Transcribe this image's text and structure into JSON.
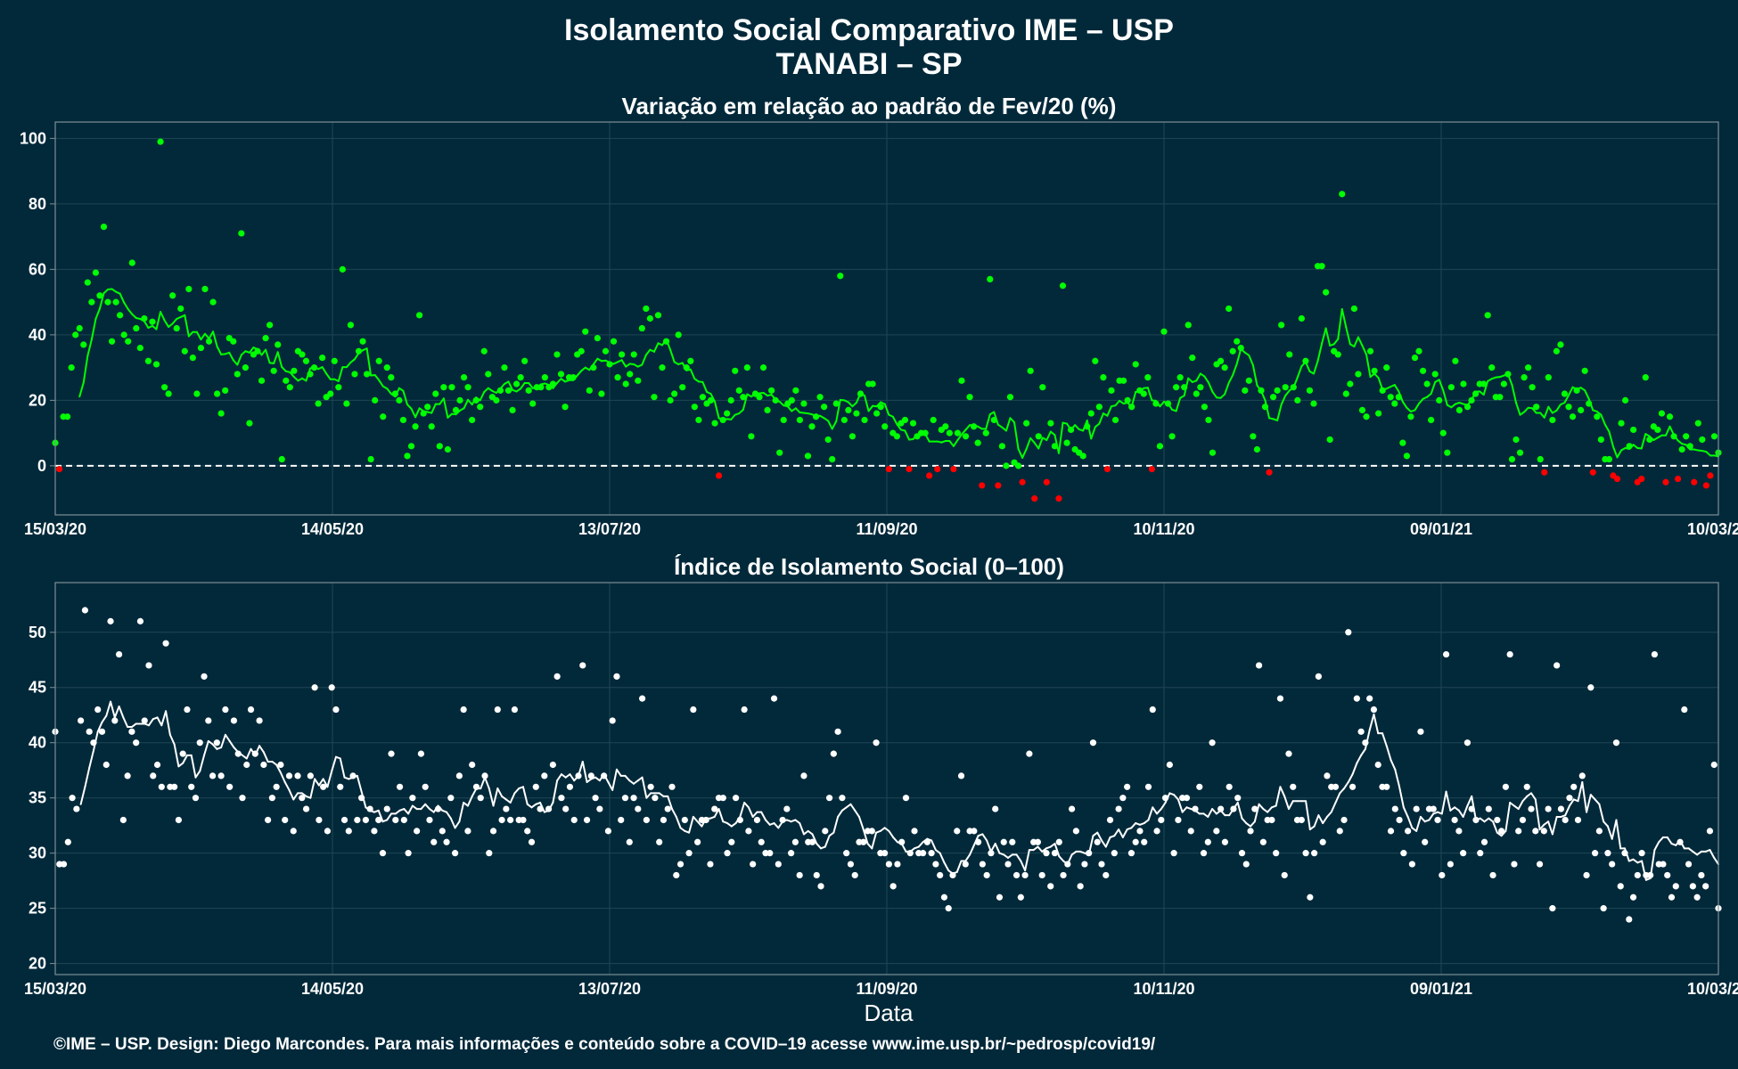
{
  "header": {
    "title": "Isolamento Social Comparativo IME – USP",
    "subtitle": "TANABI – SP"
  },
  "footer": {
    "xlabel": "Data",
    "caption": "©IME – USP. Design: Diego Marcondes. Para mais informações e conteúdo sobre a COVID–19 acesse www.ime.usp.br/~pedrosp/covid19/"
  },
  "colors": {
    "background": "#02293a",
    "positive_points": "#00ff00",
    "negative_points": "#ff0000",
    "index_points": "#ffffff",
    "grid": "#1f4654",
    "frame": "#7f8f96"
  },
  "chart_data": [
    {
      "type": "scatter",
      "title": "Variação em relação ao padrão de Fev/20 (%)",
      "x_ticks": [
        "15/03/20",
        "14/05/20",
        "13/07/20",
        "11/09/20",
        "10/11/20",
        "09/01/21",
        "10/03/21"
      ],
      "x_range": [
        "15/03/20",
        "10/03/21"
      ],
      "ylim": [
        -15,
        105
      ],
      "y_ticks": [
        0,
        20,
        40,
        60,
        80,
        100
      ],
      "reference_line": 0,
      "series": [
        {
          "role": "daily",
          "values": [
            7,
            -1,
            15,
            15,
            30,
            40,
            42,
            37,
            56,
            50,
            59,
            52,
            73,
            50,
            38,
            50,
            46,
            40,
            38,
            62,
            42,
            36,
            45,
            32,
            44,
            31,
            99,
            24,
            22,
            52,
            42,
            48,
            35,
            54,
            33,
            22,
            36,
            54,
            38,
            50,
            22,
            16,
            23,
            39,
            38,
            28,
            71,
            30,
            13,
            34,
            35,
            26,
            39,
            43,
            29,
            37,
            2,
            26,
            24,
            29,
            35,
            34,
            32,
            28,
            30,
            19,
            33,
            21,
            22,
            32,
            24,
            60,
            19,
            43,
            28,
            35,
            38,
            28,
            2,
            20,
            32,
            15,
            30,
            27,
            22,
            20,
            14,
            3,
            6,
            12,
            46,
            16,
            18,
            12,
            22,
            6,
            24,
            5,
            24,
            17,
            20,
            27,
            24,
            14,
            20,
            18,
            35,
            28,
            21,
            20,
            23,
            30,
            23,
            17,
            25,
            27,
            32,
            23,
            19,
            24,
            24,
            27,
            24,
            25,
            34,
            28,
            18,
            27,
            27,
            34,
            35,
            41,
            23,
            30,
            39,
            22,
            35,
            31,
            38,
            27,
            34,
            25,
            28,
            34,
            26,
            42,
            48,
            45,
            21,
            46,
            30,
            38,
            20,
            22,
            40,
            24,
            30,
            32,
            18,
            14,
            21,
            19,
            20,
            13,
            -3,
            14,
            16,
            20,
            29,
            23,
            21,
            30,
            9,
            22,
            21,
            30,
            17,
            23,
            20,
            4,
            14,
            19,
            20,
            23,
            14,
            19,
            3,
            12,
            15,
            21,
            18,
            8,
            2,
            19,
            58,
            14,
            17,
            9,
            16,
            22,
            14,
            25,
            25,
            16,
            18,
            12,
            -1,
            10,
            9,
            13,
            14,
            -1,
            13,
            9,
            10,
            10,
            -3,
            14,
            -1,
            11,
            12,
            10,
            -1,
            10,
            26,
            9,
            21,
            12,
            7,
            -6,
            10,
            57,
            14,
            -6,
            6,
            0,
            21,
            1,
            0,
            -5,
            13,
            29,
            -10,
            9,
            24,
            -5,
            13,
            6,
            -10,
            55,
            7,
            11,
            5,
            4,
            3,
            12,
            16,
            32,
            18,
            27,
            -1,
            23,
            14,
            26,
            26,
            20,
            18,
            31,
            23,
            22,
            27,
            -1,
            19,
            6,
            41,
            19,
            9,
            24,
            27,
            24,
            43,
            33,
            22,
            24,
            18,
            14,
            4,
            31,
            32,
            30,
            48,
            35,
            38,
            36,
            23,
            26,
            9,
            5,
            23,
            18,
            -2,
            21,
            23,
            43,
            24,
            34,
            24,
            20,
            45,
            32,
            23,
            19,
            61,
            61,
            53,
            8,
            35,
            34,
            83,
            22,
            25,
            48,
            28,
            17,
            15,
            35,
            29,
            16,
            23,
            30,
            21,
            19,
            21,
            7,
            3,
            15,
            33,
            35,
            29,
            25,
            14,
            28,
            20,
            10,
            4,
            24,
            32,
            17,
            25,
            18,
            20,
            22,
            25,
            25,
            46,
            30,
            21,
            21,
            25,
            28,
            2,
            8,
            4,
            27,
            30,
            24,
            18,
            2,
            -2,
            27,
            14,
            35,
            37,
            22,
            18,
            15,
            23,
            17,
            29,
            19,
            -2,
            15,
            8,
            2,
            2,
            -3,
            -4,
            13,
            20,
            6,
            11,
            -5,
            -4,
            27,
            8,
            12,
            11,
            16,
            -5,
            15,
            9,
            -4,
            5,
            9,
            6,
            -5,
            13,
            8,
            -6,
            -3,
            9,
            4
          ]
        }
      ]
    },
    {
      "type": "scatter",
      "title": "Índice de Isolamento Social (0–100)",
      "x_ticks": [
        "15/03/20",
        "14/05/20",
        "13/07/20",
        "11/09/20",
        "10/11/20",
        "09/01/21",
        "10/03/21"
      ],
      "x_range": [
        "15/03/20",
        "10/03/21"
      ],
      "ylim": [
        19,
        54.5
      ],
      "y_ticks": [
        20,
        25,
        30,
        35,
        40,
        45,
        50
      ],
      "series": [
        {
          "role": "daily",
          "values": [
            41,
            29,
            29,
            31,
            35,
            34,
            42,
            52,
            41,
            40,
            43,
            41,
            38,
            51,
            42,
            48,
            33,
            37,
            41,
            40,
            51,
            42,
            47,
            37,
            38,
            36,
            49,
            36,
            36,
            33,
            39,
            43,
            36,
            35,
            40,
            46,
            42,
            37,
            40,
            37,
            43,
            36,
            42,
            39,
            35,
            38,
            43,
            39,
            42,
            38,
            33,
            35,
            36,
            38,
            33,
            37,
            32,
            37,
            35,
            34,
            37,
            45,
            33,
            36,
            32,
            45,
            43,
            36,
            33,
            32,
            37,
            33,
            35,
            33,
            34,
            32,
            33,
            30,
            34,
            39,
            33,
            36,
            33,
            30,
            35,
            32,
            39,
            36,
            33,
            31,
            34,
            32,
            31,
            35,
            30,
            37,
            43,
            32,
            38,
            36,
            35,
            37,
            30,
            32,
            43,
            33,
            34,
            33,
            43,
            33,
            33,
            32,
            31,
            36,
            34,
            37,
            34,
            38,
            46,
            35,
            34,
            36,
            33,
            37,
            47,
            33,
            37,
            35,
            34,
            37,
            32,
            42,
            46,
            33,
            35,
            31,
            35,
            34,
            44,
            33,
            36,
            35,
            31,
            33,
            34,
            36,
            28,
            29,
            33,
            30,
            43,
            31,
            33,
            33,
            29,
            34,
            35,
            35,
            30,
            31,
            35,
            33,
            43,
            32,
            29,
            33,
            31,
            30,
            30,
            44,
            29,
            33,
            34,
            30,
            31,
            28,
            37,
            31,
            31,
            28,
            27,
            32,
            35,
            39,
            41,
            35,
            30,
            29,
            28,
            31,
            31,
            32,
            32,
            40,
            30,
            30,
            29,
            27,
            29,
            31,
            35,
            30,
            32,
            30,
            30,
            31,
            30,
            29,
            28,
            26,
            25,
            28,
            32,
            37,
            29,
            32,
            32,
            31,
            29,
            28,
            30,
            34,
            26,
            31,
            29,
            31,
            28,
            26,
            28,
            39,
            31,
            31,
            28,
            30,
            27,
            30,
            31,
            28,
            29,
            34,
            32,
            27,
            29,
            30,
            40,
            31,
            29,
            28,
            33,
            30,
            34,
            35,
            36,
            30,
            31,
            32,
            31,
            36,
            43,
            32,
            33,
            35,
            38,
            30,
            33,
            35,
            35,
            32,
            34,
            36,
            30,
            31,
            40,
            32,
            34,
            31,
            36,
            34,
            35,
            30,
            29,
            32,
            34,
            47,
            31,
            33,
            33,
            30,
            44,
            28,
            39,
            36,
            33,
            33,
            30,
            26,
            30,
            46,
            31,
            37,
            36,
            36,
            32,
            33,
            50,
            36,
            44,
            41,
            40,
            44,
            43,
            38,
            36,
            36,
            32,
            34,
            33,
            30,
            32,
            29,
            34,
            41,
            31,
            34,
            34,
            33,
            28,
            48,
            29,
            33,
            32,
            30,
            40,
            34,
            33,
            30,
            31,
            34,
            28,
            33,
            32,
            36,
            48,
            29,
            32,
            33,
            36,
            34,
            32,
            29,
            32,
            34,
            25,
            47,
            34,
            33,
            35,
            36,
            33,
            37,
            28,
            45,
            30,
            32,
            25,
            30,
            29,
            40,
            27,
            30,
            24,
            26,
            28,
            30,
            28,
            28,
            48,
            29,
            29,
            28,
            26,
            27,
            31,
            43,
            29,
            27,
            26,
            28,
            27,
            32,
            38,
            25
          ]
        }
      ]
    }
  ]
}
